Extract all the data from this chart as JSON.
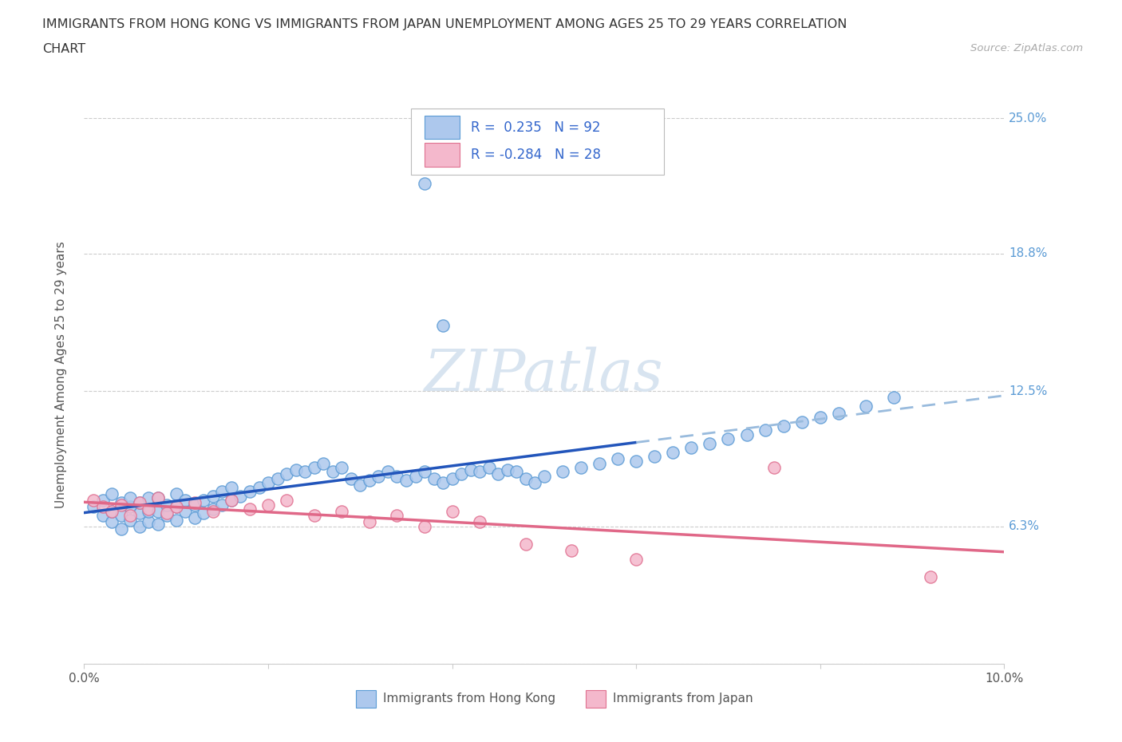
{
  "title_line1": "IMMIGRANTS FROM HONG KONG VS IMMIGRANTS FROM JAPAN UNEMPLOYMENT AMONG AGES 25 TO 29 YEARS CORRELATION",
  "title_line2": "CHART",
  "source": "Source: ZipAtlas.com",
  "ylabel": "Unemployment Among Ages 25 to 29 years",
  "xlim": [
    0.0,
    0.1
  ],
  "ylim": [
    0.0,
    0.265
  ],
  "ytick_vals": [
    0.0,
    0.063,
    0.125,
    0.188,
    0.25
  ],
  "ytick_labels": [
    "",
    "6.3%",
    "12.5%",
    "18.8%",
    "25.0%"
  ],
  "hk_R": 0.235,
  "hk_N": 92,
  "jp_R": -0.284,
  "jp_N": 28,
  "hk_color": "#adc8ed",
  "hk_edge_color": "#5b9bd5",
  "jp_color": "#f4b8cc",
  "jp_edge_color": "#e07090",
  "hk_trend_color": "#2255bb",
  "jp_trend_color": "#e06888",
  "hk_trend_dash_color": "#99bbdd",
  "watermark_color": "#d8e4f0",
  "background_color": "#ffffff",
  "hk_x": [
    0.001,
    0.002,
    0.002,
    0.003,
    0.003,
    0.003,
    0.004,
    0.004,
    0.004,
    0.005,
    0.005,
    0.005,
    0.006,
    0.006,
    0.006,
    0.007,
    0.007,
    0.007,
    0.008,
    0.008,
    0.008,
    0.009,
    0.009,
    0.01,
    0.01,
    0.01,
    0.011,
    0.011,
    0.012,
    0.012,
    0.013,
    0.013,
    0.014,
    0.014,
    0.015,
    0.015,
    0.016,
    0.016,
    0.017,
    0.018,
    0.019,
    0.02,
    0.021,
    0.022,
    0.023,
    0.024,
    0.025,
    0.026,
    0.027,
    0.028,
    0.029,
    0.03,
    0.031,
    0.032,
    0.033,
    0.034,
    0.035,
    0.036,
    0.037,
    0.038,
    0.039,
    0.04,
    0.041,
    0.042,
    0.043,
    0.044,
    0.045,
    0.046,
    0.047,
    0.048,
    0.049,
    0.05,
    0.052,
    0.054,
    0.056,
    0.058,
    0.06,
    0.062,
    0.064,
    0.066,
    0.068,
    0.07,
    0.072,
    0.074,
    0.076,
    0.078,
    0.08,
    0.082,
    0.085,
    0.088,
    0.037,
    0.039
  ],
  "hk_y": [
    0.072,
    0.068,
    0.075,
    0.065,
    0.07,
    0.078,
    0.062,
    0.068,
    0.074,
    0.066,
    0.072,
    0.076,
    0.063,
    0.069,
    0.074,
    0.065,
    0.07,
    0.076,
    0.064,
    0.07,
    0.076,
    0.068,
    0.073,
    0.066,
    0.072,
    0.078,
    0.07,
    0.075,
    0.067,
    0.073,
    0.069,
    0.075,
    0.071,
    0.077,
    0.073,
    0.079,
    0.075,
    0.081,
    0.077,
    0.079,
    0.081,
    0.083,
    0.085,
    0.087,
    0.089,
    0.088,
    0.09,
    0.092,
    0.088,
    0.09,
    0.085,
    0.082,
    0.084,
    0.086,
    0.088,
    0.086,
    0.084,
    0.086,
    0.088,
    0.085,
    0.083,
    0.085,
    0.087,
    0.089,
    0.088,
    0.09,
    0.087,
    0.089,
    0.088,
    0.085,
    0.083,
    0.086,
    0.088,
    0.09,
    0.092,
    0.094,
    0.093,
    0.095,
    0.097,
    0.099,
    0.101,
    0.103,
    0.105,
    0.107,
    0.109,
    0.111,
    0.113,
    0.115,
    0.118,
    0.122,
    0.22,
    0.155
  ],
  "jp_x": [
    0.001,
    0.002,
    0.003,
    0.004,
    0.005,
    0.006,
    0.007,
    0.008,
    0.009,
    0.01,
    0.012,
    0.014,
    0.016,
    0.018,
    0.02,
    0.022,
    0.025,
    0.028,
    0.031,
    0.034,
    0.037,
    0.04,
    0.043,
    0.048,
    0.053,
    0.06,
    0.075,
    0.092
  ],
  "jp_y": [
    0.075,
    0.072,
    0.07,
    0.073,
    0.068,
    0.074,
    0.071,
    0.076,
    0.069,
    0.072,
    0.074,
    0.07,
    0.075,
    0.071,
    0.073,
    0.075,
    0.068,
    0.07,
    0.065,
    0.068,
    0.063,
    0.07,
    0.065,
    0.055,
    0.052,
    0.048,
    0.09,
    0.04
  ],
  "hk_trend_x0": 0.0,
  "hk_trend_x_solid_end": 0.06,
  "hk_trend_x1": 0.1,
  "jp_trend_x0": 0.0,
  "jp_trend_x1": 0.1
}
